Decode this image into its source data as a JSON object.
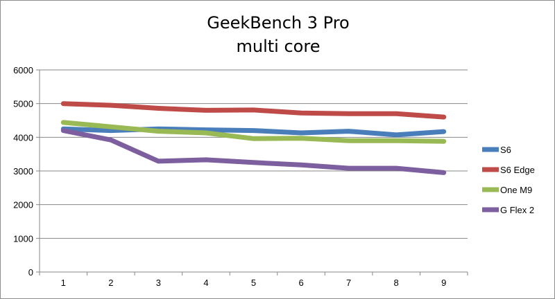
{
  "chart_data": {
    "type": "line",
    "title_lines": [
      "GeekBench 3 Pro",
      "multi core"
    ],
    "x": [
      "1",
      "2",
      "3",
      "4",
      "5",
      "6",
      "7",
      "8",
      "9"
    ],
    "ylim": [
      0,
      6000
    ],
    "yticks": [
      0,
      1000,
      2000,
      3000,
      4000,
      5000,
      6000
    ],
    "grid": "horizontal",
    "legend": "right",
    "series": [
      {
        "name": "S6",
        "color": "#4a7ebb",
        "values": [
          4250,
          4200,
          4250,
          4220,
          4200,
          4130,
          4180,
          4070,
          4170
        ]
      },
      {
        "name": "S6 Edge",
        "color": "#be4b48",
        "values": [
          5000,
          4950,
          4860,
          4800,
          4810,
          4720,
          4700,
          4700,
          4600
        ]
      },
      {
        "name": "One M9",
        "color": "#98b954",
        "values": [
          4440,
          4310,
          4180,
          4130,
          3960,
          3970,
          3900,
          3900,
          3880
        ]
      },
      {
        "name": "G Flex 2",
        "color": "#7d5fa0",
        "values": [
          4200,
          3920,
          3290,
          3330,
          3250,
          3180,
          3080,
          3080,
          2950
        ]
      }
    ]
  }
}
